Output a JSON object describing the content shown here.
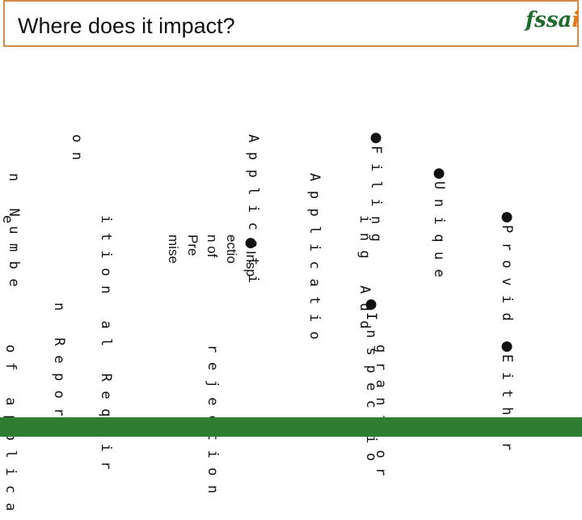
{
  "header": {
    "title": "Where does it impact?",
    "logo_text_main": "fssa",
    "logo_text_accent": "i"
  },
  "bullets": [
    {
      "id": "f",
      "marker": "●",
      "col1": "Filing",
      "col2": "Applicati",
      "col3": "on"
    },
    {
      "id": "u",
      "marker": "●",
      "col1": "Unique",
      "col2": "Applicatio",
      "col3": "n Numbe"
    },
    {
      "id": "p",
      "marker": "●",
      "col1": "Provid",
      "col2": "ing Add",
      "col3": "ition al Requir",
      "col4": "e"
    },
    {
      "id": "insp",
      "marker": "●",
      "text": "Insp\nectio\nn of\nPre\nmise"
    },
    {
      "id": "i",
      "marker": "●",
      "col1": "Inspectio",
      "col2": "n Report"
    },
    {
      "id": "e",
      "marker": "●",
      "col1": "Either",
      "col2": "grant or",
      "col3": "rejection",
      "col4": "of applica"
    }
  ],
  "colors": {
    "header_border": "#d08a4a",
    "footer": "#2e7d32",
    "logo_green": "#1f6b2e",
    "logo_orange": "#e07a1a"
  }
}
